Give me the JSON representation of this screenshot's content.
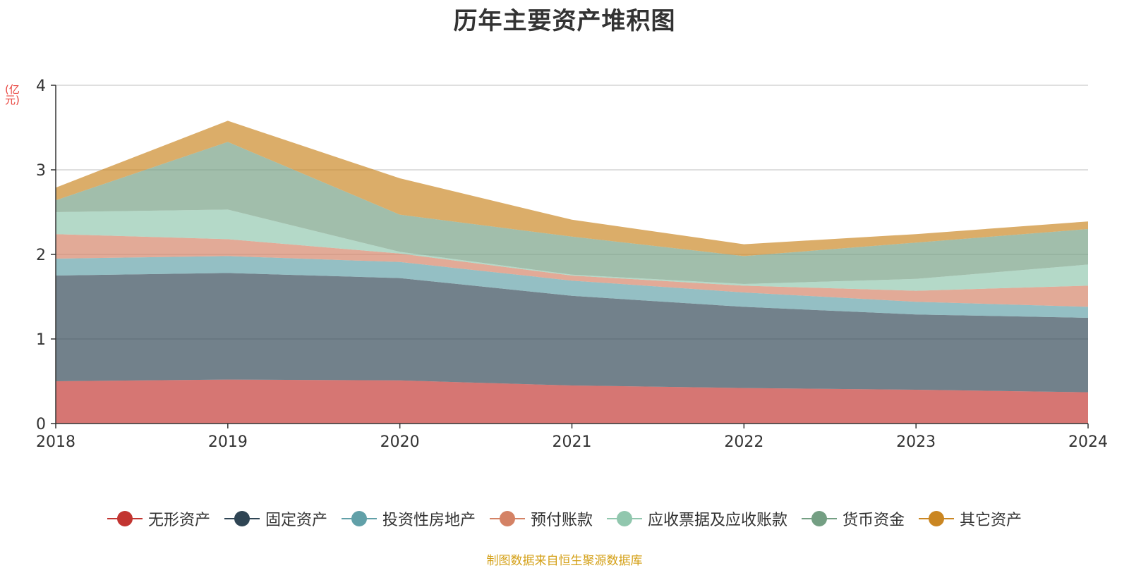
{
  "chart_data": {
    "type": "area",
    "stacked": true,
    "title": "历年主要资产堆积图",
    "unit_label": "(亿元)",
    "x": [
      "2018",
      "2019",
      "2020",
      "2021",
      "2022",
      "2023",
      "2024"
    ],
    "ylim": [
      0,
      4
    ],
    "yticks": [
      "0",
      "1",
      "2",
      "3",
      "4"
    ],
    "grid": true,
    "legend_position": "bottom",
    "series": [
      {
        "name": "无形资产",
        "values": [
          0.5,
          0.52,
          0.51,
          0.45,
          0.42,
          0.4,
          0.37
        ],
        "color": "#c23531"
      },
      {
        "name": "固定资产",
        "values": [
          1.25,
          1.26,
          1.21,
          1.06,
          0.96,
          0.89,
          0.88
        ],
        "color": "#2f4554"
      },
      {
        "name": "投资性房地产",
        "values": [
          0.2,
          0.2,
          0.19,
          0.18,
          0.17,
          0.15,
          0.13
        ],
        "color": "#61a0a8"
      },
      {
        "name": "预付账款",
        "values": [
          0.29,
          0.2,
          0.1,
          0.06,
          0.08,
          0.13,
          0.25
        ],
        "color": "#d48265"
      },
      {
        "name": "应收票据及应收账款",
        "values": [
          0.26,
          0.35,
          0.02,
          0.01,
          0.02,
          0.14,
          0.25
        ],
        "color": "#91c7ae"
      },
      {
        "name": "货币资金",
        "values": [
          0.14,
          0.8,
          0.44,
          0.45,
          0.33,
          0.43,
          0.42
        ],
        "color": "#749f83"
      },
      {
        "name": "其它资产",
        "values": [
          0.15,
          0.25,
          0.43,
          0.2,
          0.14,
          0.1,
          0.09
        ],
        "color": "#ca8622"
      }
    ]
  },
  "colors": {
    "title": "#333333",
    "unit_label": "#e8403a",
    "source_note": "#d4a017",
    "grid": "#cccccc",
    "axis": "#333333"
  },
  "footer": {
    "source": "制图数据来自恒生聚源数据库"
  }
}
